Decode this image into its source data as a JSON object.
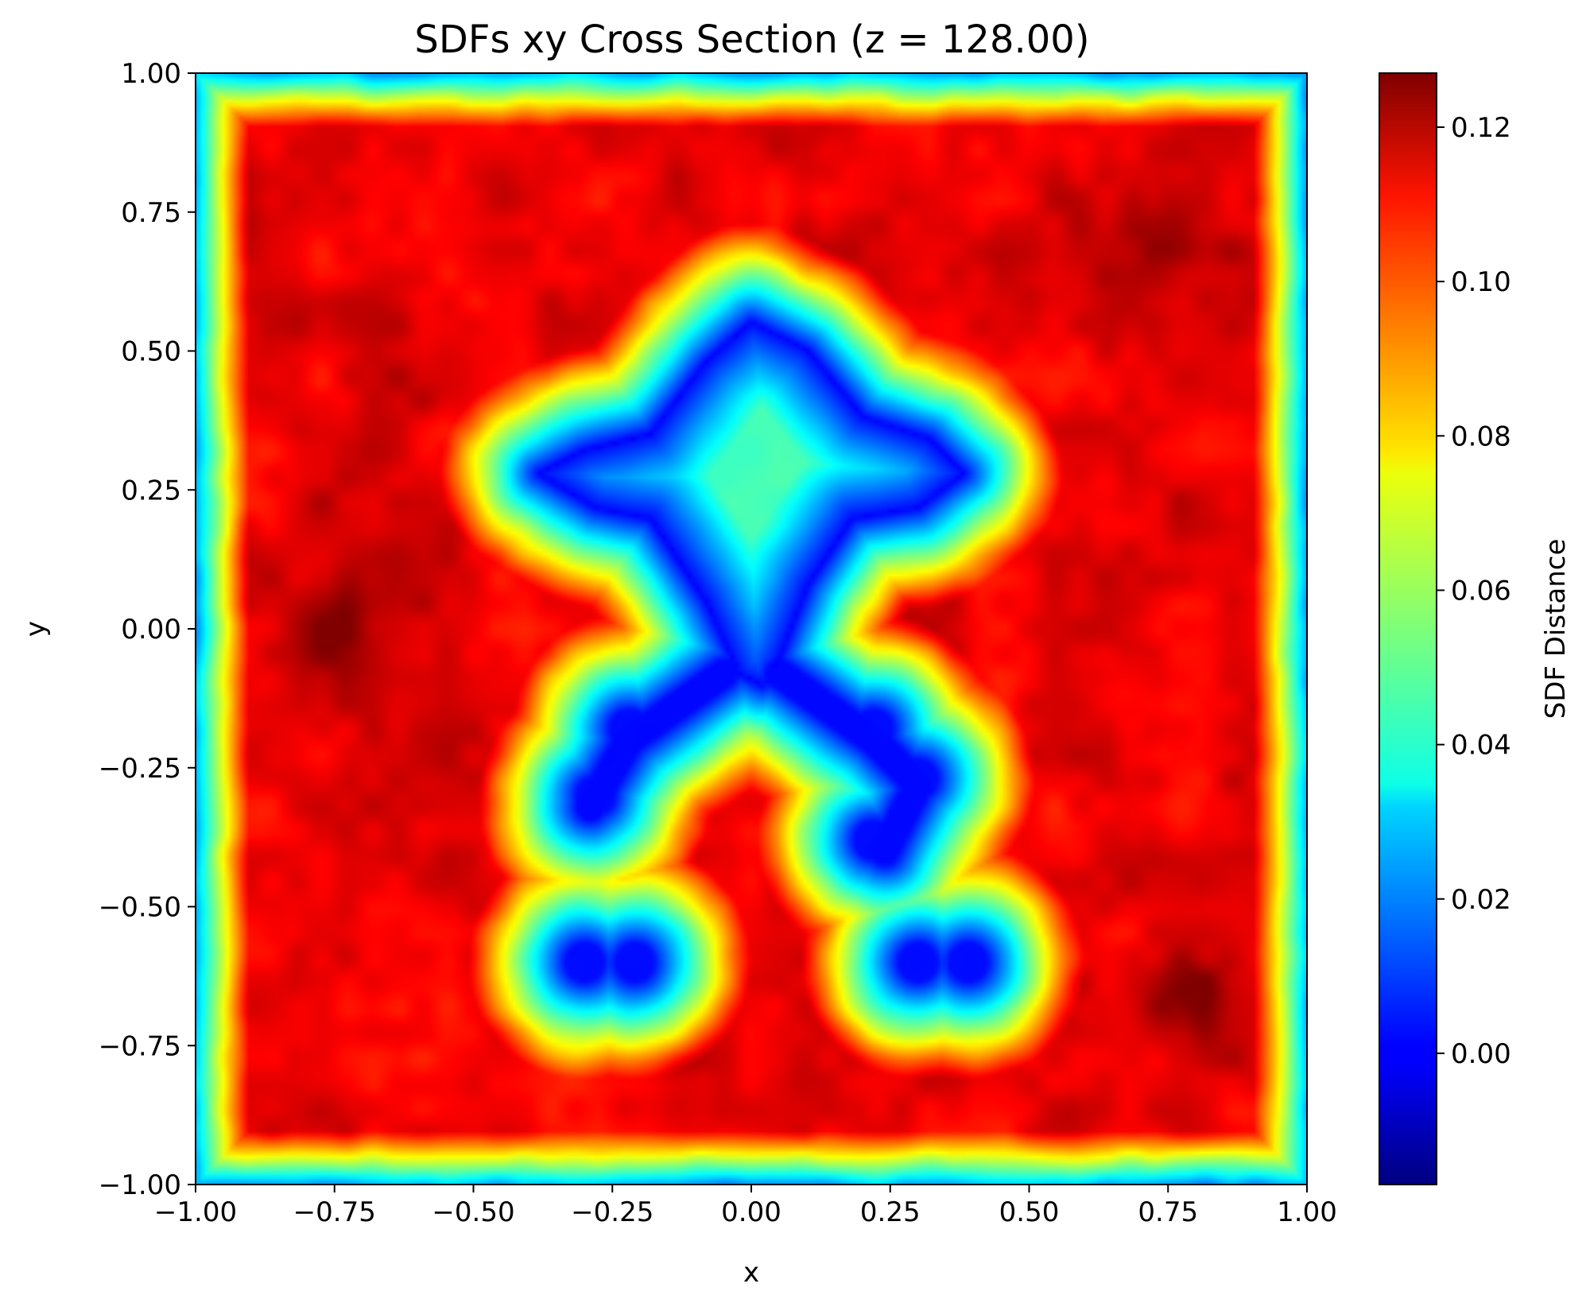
{
  "chart_data": {
    "type": "heatmap",
    "title": "SDFs xy Cross Section (z = 128.00)",
    "xlabel": "x",
    "ylabel": "y",
    "xlim": [
      -1.0,
      1.0
    ],
    "ylim": [
      -1.0,
      1.0
    ],
    "x_ticks": [
      "−1.00",
      "−0.75",
      "−0.50",
      "−0.25",
      "0.00",
      "0.25",
      "0.50",
      "0.75",
      "1.00"
    ],
    "y_ticks": [
      "−1.00",
      "−0.75",
      "−0.50",
      "−0.25",
      "0.00",
      "0.25",
      "0.50",
      "0.75",
      "1.00"
    ],
    "x_tick_values": [
      -1.0,
      -0.75,
      -0.5,
      -0.25,
      0.0,
      0.25,
      0.5,
      0.75,
      1.0
    ],
    "y_tick_values": [
      -1.0,
      -0.75,
      -0.5,
      -0.25,
      0.0,
      0.25,
      0.5,
      0.75,
      1.0
    ],
    "colormap": "jet",
    "colorbar": {
      "label": "SDF Distance",
      "range": [
        -0.017,
        0.127
      ],
      "ticks": [
        "0.00",
        "0.02",
        "0.04",
        "0.06",
        "0.08",
        "0.10",
        "0.12"
      ],
      "tick_values": [
        0.0,
        0.02,
        0.04,
        0.06,
        0.08,
        0.1,
        0.12
      ]
    },
    "field_description": "signed distance field of a humanoid figure; zero-level contour along figure outline, values rising to about 0.12 in the interior of the square domain and falling to about 0.02 at the domain border",
    "shape_outline": {
      "head_body": [
        [
          0.0,
          0.55
        ],
        [
          0.1,
          0.5
        ],
        [
          0.2,
          0.38
        ],
        [
          0.32,
          0.34
        ],
        [
          0.38,
          0.28
        ],
        [
          0.3,
          0.22
        ],
        [
          0.18,
          0.2
        ],
        [
          0.1,
          0.08
        ],
        [
          0.05,
          -0.05
        ],
        [
          0.02,
          -0.1
        ],
        [
          -0.02,
          -0.08
        ],
        [
          -0.08,
          0.05
        ],
        [
          -0.18,
          0.2
        ],
        [
          -0.28,
          0.22
        ],
        [
          -0.38,
          0.28
        ],
        [
          -0.3,
          0.32
        ],
        [
          -0.18,
          0.35
        ],
        [
          -0.08,
          0.48
        ],
        [
          0.0,
          0.55
        ]
      ]
    },
    "low_blobs": [
      {
        "x": -0.22,
        "y": -0.18,
        "value": 0.0
      },
      {
        "x": -0.28,
        "y": -0.3,
        "value": 0.005
      },
      {
        "x": 0.22,
        "y": -0.18,
        "value": 0.0
      },
      {
        "x": 0.3,
        "y": -0.27,
        "value": 0.005
      },
      {
        "x": 0.22,
        "y": -0.38,
        "value": 0.02
      },
      {
        "x": -0.3,
        "y": -0.6,
        "value": 0.005
      },
      {
        "x": -0.21,
        "y": -0.6,
        "value": 0.005
      },
      {
        "x": 0.3,
        "y": -0.6,
        "value": 0.005
      },
      {
        "x": 0.39,
        "y": -0.6,
        "value": 0.005
      }
    ],
    "high_spots": [
      {
        "x": -0.72,
        "y": -0.01,
        "value": 0.127
      },
      {
        "x": 0.8,
        "y": -0.65,
        "value": 0.124
      },
      {
        "x": 0.71,
        "y": 0.7,
        "value": 0.122
      }
    ]
  }
}
